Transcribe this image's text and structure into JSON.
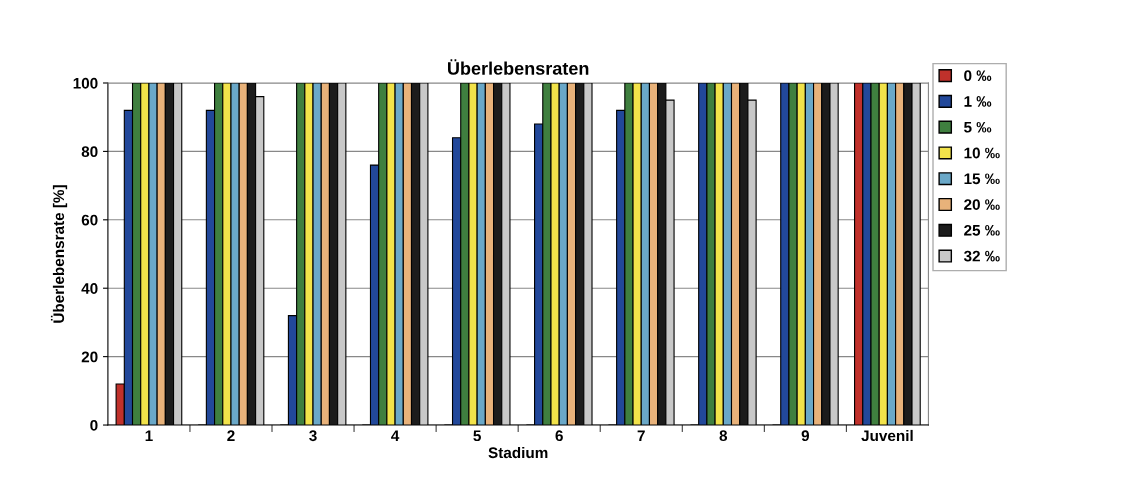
{
  "chart_data": {
    "type": "bar",
    "title": "Überlebensraten",
    "xlabel": "Stadium",
    "ylabel": "Überlebensrate [%]",
    "categories": [
      "1",
      "2",
      "3",
      "4",
      "5",
      "6",
      "7",
      "8",
      "9",
      "Juvenil"
    ],
    "series": [
      {
        "name": "0 ‰",
        "color": "#c0312b",
        "values": [
          12,
          0,
          0,
          0,
          0,
          0,
          0,
          0,
          0,
          100
        ]
      },
      {
        "name": "1 ‰",
        "color": "#22489a",
        "values": [
          92,
          92,
          32,
          76,
          84,
          88,
          92,
          100,
          100,
          100
        ]
      },
      {
        "name": "5 ‰",
        "color": "#3f7f3f",
        "values": [
          100,
          100,
          100,
          100,
          100,
          100,
          100,
          100,
          100,
          100
        ]
      },
      {
        "name": "10 ‰",
        "color": "#f2e34a",
        "values": [
          100,
          100,
          100,
          100,
          100,
          100,
          100,
          100,
          100,
          100
        ]
      },
      {
        "name": "15 ‰",
        "color": "#6aa8c8",
        "values": [
          100,
          100,
          100,
          100,
          100,
          100,
          100,
          100,
          100,
          100
        ]
      },
      {
        "name": "20 ‰",
        "color": "#e8b27a",
        "values": [
          100,
          100,
          100,
          100,
          100,
          100,
          100,
          100,
          100,
          100
        ]
      },
      {
        "name": "25 ‰",
        "color": "#1c1c1c",
        "values": [
          100,
          100,
          100,
          100,
          100,
          100,
          100,
          100,
          100,
          100
        ]
      },
      {
        "name": "32 ‰",
        "color": "#c8c8c8",
        "values": [
          100,
          96,
          100,
          100,
          100,
          100,
          95,
          95,
          100,
          100
        ]
      }
    ],
    "ylim": [
      0,
      100
    ],
    "yticks": [
      0,
      20,
      40,
      60,
      80,
      100
    ],
    "grid": "y",
    "legend": "top right"
  }
}
